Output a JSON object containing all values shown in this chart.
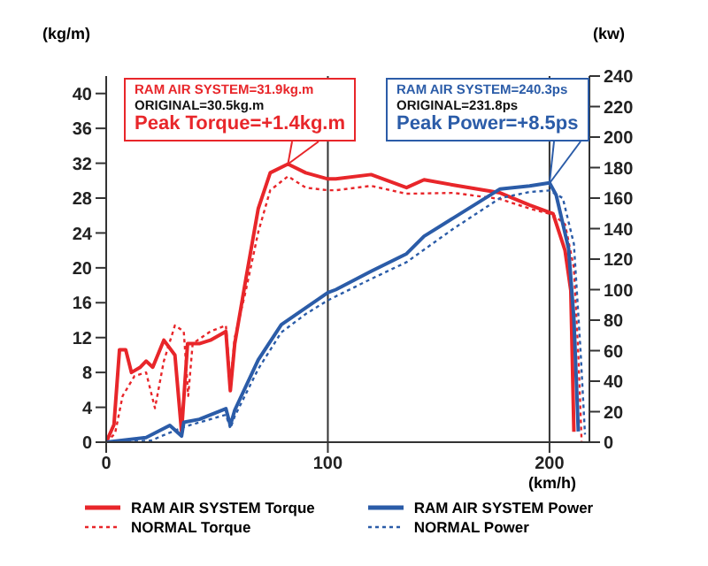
{
  "chart_data": {
    "type": "line",
    "xlabel": "(km/h)",
    "ylabel": "(kg/m)",
    "y2label": "(kw)",
    "xlim": [
      0,
      218
    ],
    "xticks": [
      0,
      100,
      200
    ],
    "ylim": [
      0,
      42
    ],
    "yticks": [
      0,
      4,
      8,
      12,
      16,
      20,
      24,
      28,
      32,
      36,
      40
    ],
    "y2lim": [
      0,
      240
    ],
    "y2ticks": [
      0,
      20,
      40,
      60,
      80,
      100,
      120,
      140,
      160,
      180,
      200,
      220,
      240
    ],
    "grid": "x",
    "legend": "bottom",
    "marker": "none",
    "line_style": "solid",
    "annotations": [
      "RAM AIR SYSTEM=31.9kg.m",
      "ORIGINAL=30.5kg.m",
      {
        "text": "Peak Torque=+1.4kg.m",
        "x": 82,
        "y": 31.9
      },
      "RAM AIR SYSTEM=240.3ps",
      "ORIGINAL=231.8ps",
      {
        "text": "Peak Power=+8.5ps",
        "x": 200,
        "y": 29.7
      }
    ],
    "series": [
      {
        "name": "RAM AIR SYSTEM  Torque",
        "color": "#e8262a",
        "x": [
          0,
          3.5,
          6,
          8.8,
          11.4,
          15.4,
          18,
          21,
          26,
          31,
          34,
          36.7,
          42,
          47,
          54,
          56,
          58,
          63,
          68.6,
          74,
          82,
          90,
          100,
          103.6,
          119.5,
          135.5,
          143.4,
          156.7,
          177.7,
          191,
          201.6,
          207,
          209.6,
          211
        ],
        "values": [
          0,
          2,
          10.6,
          10.6,
          8,
          8.6,
          9.3,
          8.6,
          11.7,
          10,
          1.2,
          11.3,
          11.3,
          11.7,
          12.7,
          5.9,
          11.3,
          18.7,
          26.8,
          30.9,
          31.9,
          30.9,
          30.2,
          30.2,
          30.7,
          29.2,
          30.1,
          29.5,
          28.6,
          27.2,
          26.2,
          22,
          17.4,
          1.2
        ]
      },
      {
        "name": "NORMAL Torque",
        "color": "#e8262a",
        "line_style": "dotted",
        "x": [
          0,
          4,
          7.4,
          12.8,
          18,
          22,
          26,
          31,
          35,
          37,
          39,
          47,
          54,
          56,
          58,
          63,
          68.6,
          74,
          82,
          90,
          100,
          103.6,
          119.5,
          135.5,
          156.7,
          177.7,
          191,
          201.6,
          207,
          211,
          213,
          214.5
        ],
        "values": [
          0,
          1,
          5.3,
          7.6,
          8,
          3.9,
          9.3,
          13.4,
          12.7,
          5.3,
          11.3,
          12.7,
          13.4,
          6.6,
          12,
          17.4,
          24.1,
          28.9,
          30.5,
          29.2,
          28.9,
          28.9,
          29.4,
          28.5,
          28.6,
          27.9,
          26.8,
          26.1,
          25,
          20,
          10,
          0
        ]
      },
      {
        "name": "RAM AIR SYSTEM  Power",
        "color": "#2b5ca8",
        "axis": "y2",
        "x": [
          0,
          18,
          28.7,
          34,
          35,
          42,
          54,
          56,
          58,
          68.6,
          79,
          90,
          100,
          103.6,
          119.5,
          135.5,
          143.4,
          156.7,
          177.7,
          191,
          200,
          203,
          208.6,
          211,
          213
        ],
        "values": [
          0,
          3,
          11,
          4,
          13,
          15,
          22,
          11,
          21,
          54,
          77,
          88,
          98,
          100,
          112,
          123.5,
          135,
          147,
          166,
          168,
          170,
          162,
          127,
          81,
          7
        ]
      },
      {
        "name": "NORMAL Power",
        "color": "#2b5ca8",
        "axis": "y2",
        "line_style": "dotted",
        "x": [
          0,
          20,
          35,
          54,
          56,
          58,
          68.6,
          79,
          90,
          100,
          119.5,
          135.5,
          156.7,
          177.7,
          191,
          200,
          206,
          211,
          214,
          216
        ],
        "values": [
          0,
          1,
          10,
          18,
          9,
          17,
          48,
          72,
          84,
          93,
          107,
          118,
          140,
          160,
          164,
          165,
          160,
          130,
          60,
          5
        ]
      }
    ]
  }
}
